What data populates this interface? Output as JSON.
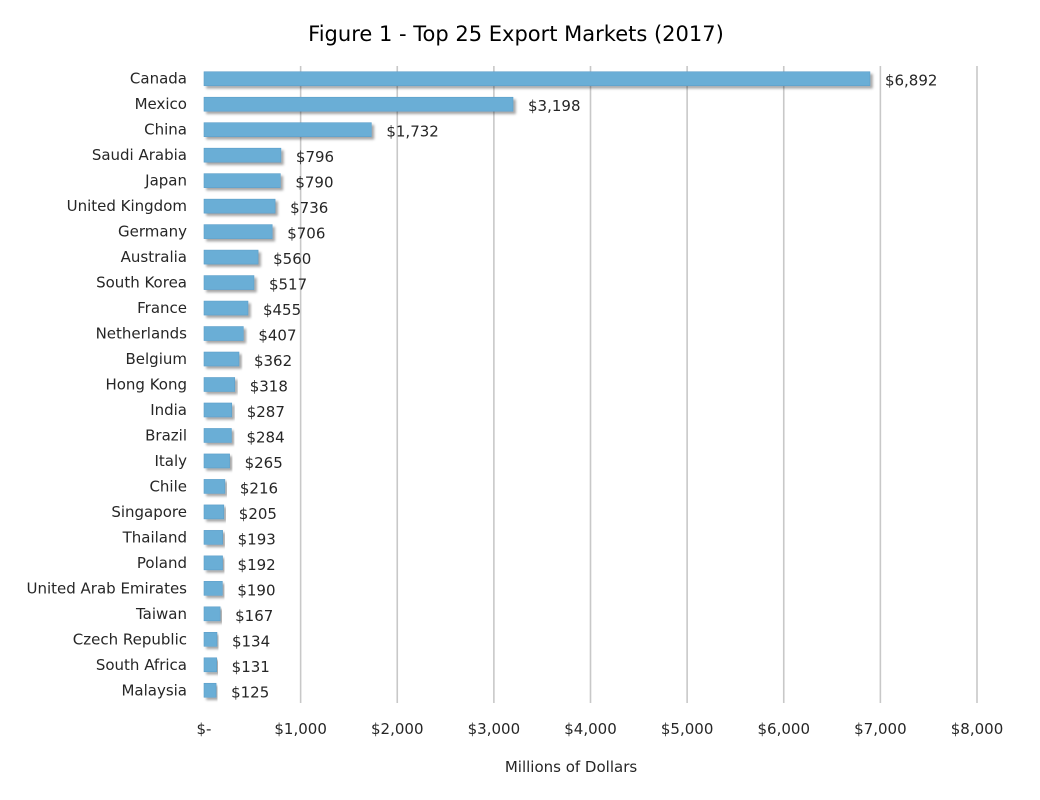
{
  "chart_data": {
    "type": "bar",
    "orientation": "horizontal",
    "title": "Figure 1 - Top 25 Export Markets (2017)",
    "xlabel": "Millions of Dollars",
    "ylabel": "",
    "xlim": [
      0,
      8000
    ],
    "x_ticks": [
      0,
      1000,
      2000,
      3000,
      4000,
      5000,
      6000,
      7000,
      8000
    ],
    "x_tick_labels": [
      "$-",
      "$1,000",
      "$2,000",
      "$3,000",
      "$4,000",
      "$5,000",
      "$6,000",
      "$7,000",
      "$8,000"
    ],
    "grid": "vertical",
    "legend": "none",
    "bar_color": "#6baed6",
    "categories": [
      "Canada",
      "Mexico",
      "China",
      "Saudi Arabia",
      "Japan",
      "United Kingdom",
      "Germany",
      "Australia",
      "South Korea",
      "France",
      "Netherlands",
      "Belgium",
      "Hong Kong",
      "India",
      "Brazil",
      "Italy",
      "Chile",
      "Singapore",
      "Thailand",
      "Poland",
      "United Arab Emirates",
      "Taiwan",
      "Czech Republic",
      "South Africa",
      "Malaysia"
    ],
    "values": [
      6892,
      3198,
      1732,
      796,
      790,
      736,
      706,
      560,
      517,
      455,
      407,
      362,
      318,
      287,
      284,
      265,
      216,
      205,
      193,
      192,
      190,
      167,
      134,
      131,
      125
    ],
    "data_labels": [
      "$6,892",
      "$3,198",
      "$1,732",
      "$796",
      "$790",
      "$736",
      "$706",
      "$560",
      "$517",
      "$455",
      "$407",
      "$362",
      "$318",
      "$287",
      "$284",
      "$265",
      "$216",
      "$205",
      "$193",
      "$192",
      "$190",
      "$167",
      "$134",
      "$131",
      "$125"
    ]
  }
}
